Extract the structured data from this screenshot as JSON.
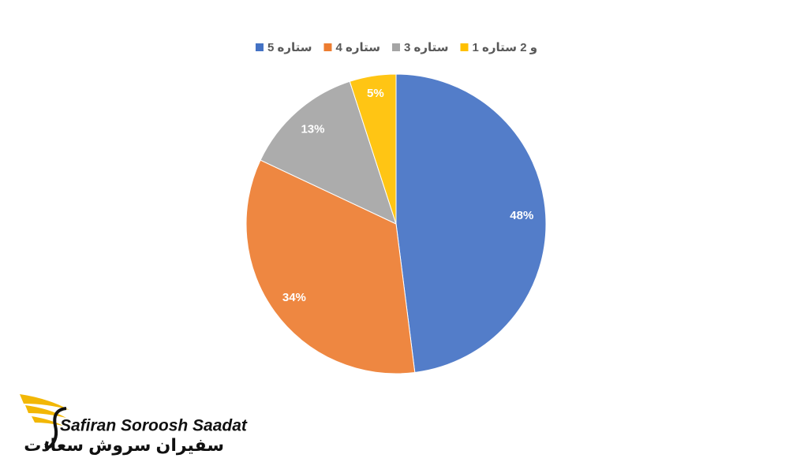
{
  "chart_data": {
    "type": "pie",
    "categories": [
      "5 ستاره",
      "4 ستاره",
      "3 ستاره",
      "1 و 2 ستاره"
    ],
    "values": [
      48,
      34,
      13,
      5
    ],
    "value_labels": [
      "48%",
      "34%",
      "13%",
      "5%"
    ],
    "colors": [
      "#4472c4",
      "#ed7d31",
      "#a5a5a5",
      "#ffc000"
    ],
    "legend": "top"
  },
  "logo": {
    "name_en": "Safiran Soroosh Saadat",
    "name_fa": "سفیران سروش سعادت"
  }
}
